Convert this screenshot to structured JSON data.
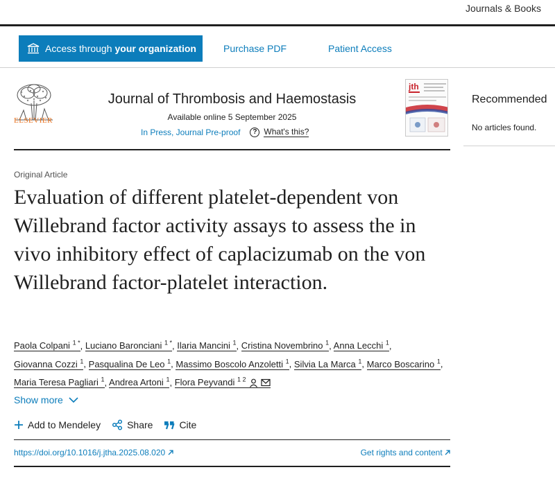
{
  "topbar": {
    "journals_books": "Journals & Books"
  },
  "access": {
    "button_prefix": "Access through",
    "button_bold": "your organization",
    "purchase": "Purchase PDF",
    "patient": "Patient Access"
  },
  "journal": {
    "publisher": "ELSEVIER",
    "title": "Journal of Thrombosis and Haemostasis",
    "available": "Available online 5 September 2025",
    "status": "In Press, Journal Pre-proof",
    "whats_this": "What's this?",
    "cover_abbr": "jth"
  },
  "sidebar": {
    "recommended": "Recommended",
    "no_articles": "No articles found."
  },
  "article": {
    "type": "Original Article",
    "title": "Evaluation of different platelet-dependent von Willebrand factor activity assays to assess the in vivo inhibitory effect of caplacizumab on the von Willebrand factor-platelet interaction.",
    "authors": [
      {
        "name": "Paola Colpani",
        "sup": "1 *"
      },
      {
        "name": "Luciano Baronciani",
        "sup": "1 *"
      },
      {
        "name": "Ilaria Mancini",
        "sup": "1"
      },
      {
        "name": "Cristina Novembrino",
        "sup": "1"
      },
      {
        "name": "Anna Lecchi",
        "sup": "1"
      },
      {
        "name": "Giovanna Cozzi",
        "sup": "1"
      },
      {
        "name": "Pasqualina De Leo",
        "sup": "1"
      },
      {
        "name": "Massimo Boscolo Anzoletti",
        "sup": "1"
      },
      {
        "name": "Silvia La Marca",
        "sup": "1"
      },
      {
        "name": "Marco Boscarino",
        "sup": "1"
      },
      {
        "name": "Maria Teresa Pagliari",
        "sup": "1"
      },
      {
        "name": "Andrea Artoni",
        "sup": "1"
      },
      {
        "name": "Flora Peyvandi",
        "sup": "1 2"
      }
    ],
    "show_more": "Show more",
    "actions": {
      "mendeley": "Add to Mendeley",
      "share": "Share",
      "cite": "Cite"
    },
    "doi": "https://doi.org/10.1016/j.jtha.2025.08.020",
    "rights": "Get rights and content"
  },
  "colors": {
    "accent": "#0c7dbb",
    "elsevier_orange": "#e9711c",
    "text": "#1f1f1f"
  }
}
